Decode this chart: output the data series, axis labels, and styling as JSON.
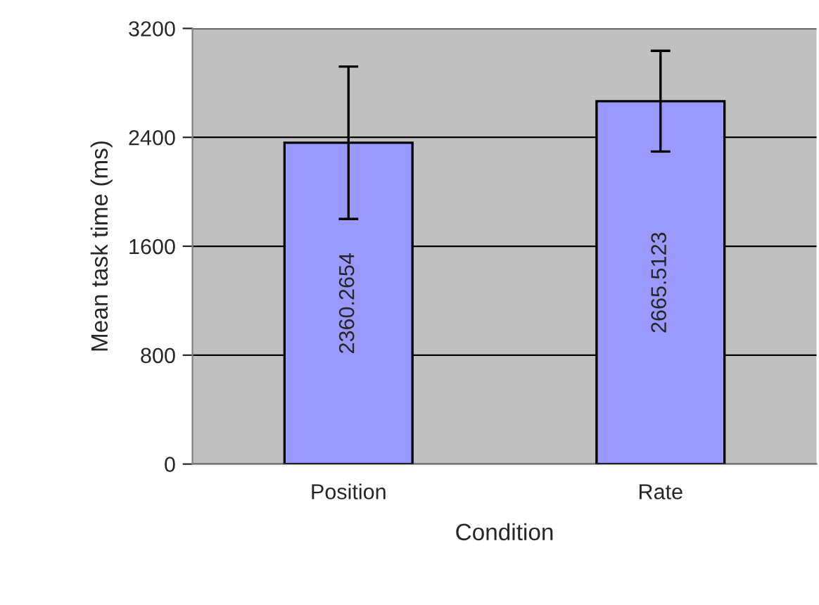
{
  "chart_data": {
    "type": "bar",
    "xlabel": "Condition",
    "ylabel": "Mean task time (ms)",
    "categories": [
      "Position",
      "Rate"
    ],
    "values": [
      2360.2654,
      2665.5123
    ],
    "errors": [
      560,
      370
    ],
    "color": "#9999ff",
    "data_labels": true,
    "ylim": [
      0,
      3200
    ],
    "yticks": [
      0,
      800,
      1600,
      2400,
      3200
    ],
    "grid": "y",
    "legend": false
  }
}
